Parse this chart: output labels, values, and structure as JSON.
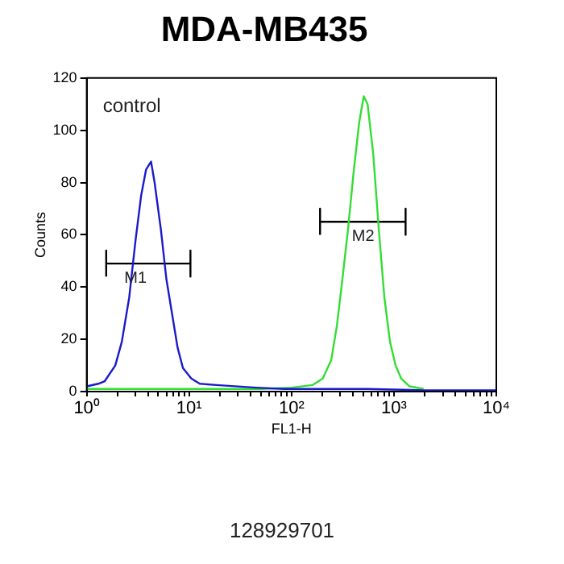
{
  "chart_data": {
    "type": "line",
    "title": "MDA-MB435",
    "xlabel": "FL1-H",
    "ylabel": "Counts",
    "log": "x",
    "grid": false,
    "legend": false,
    "marker": "none",
    "line_style": "solid",
    "xlim": [
      1,
      10000
    ],
    "ylim": [
      0,
      120
    ],
    "xticks": [
      {
        "value": 1,
        "label": "10⁰"
      },
      {
        "value": 2,
        "label": null
      },
      {
        "value": 3,
        "label": null
      },
      {
        "value": 4,
        "label": null
      },
      {
        "value": 5,
        "label": null
      },
      {
        "value": 6,
        "label": null
      },
      {
        "value": 7,
        "label": null
      },
      {
        "value": 8,
        "label": null
      },
      {
        "value": 9,
        "label": null
      },
      {
        "value": 10,
        "label": "10¹"
      },
      {
        "value": 20,
        "label": null
      },
      {
        "value": 30,
        "label": null
      },
      {
        "value": 40,
        "label": null
      },
      {
        "value": 50,
        "label": null
      },
      {
        "value": 60,
        "label": null
      },
      {
        "value": 70,
        "label": null
      },
      {
        "value": 80,
        "label": null
      },
      {
        "value": 90,
        "label": null
      },
      {
        "value": 100,
        "label": "10²"
      },
      {
        "value": 200,
        "label": null
      },
      {
        "value": 300,
        "label": null
      },
      {
        "value": 400,
        "label": null
      },
      {
        "value": 500,
        "label": null
      },
      {
        "value": 600,
        "label": null
      },
      {
        "value": 700,
        "label": null
      },
      {
        "value": 800,
        "label": null
      },
      {
        "value": 900,
        "label": null
      },
      {
        "value": 1000,
        "label": "10³"
      },
      {
        "value": 2000,
        "label": null
      },
      {
        "value": 3000,
        "label": null
      },
      {
        "value": 4000,
        "label": null
      },
      {
        "value": 5000,
        "label": null
      },
      {
        "value": 6000,
        "label": null
      },
      {
        "value": 7000,
        "label": null
      },
      {
        "value": 8000,
        "label": null
      },
      {
        "value": 9000,
        "label": null
      },
      {
        "value": 10000,
        "label": "10⁴"
      }
    ],
    "yticks": [
      0,
      20,
      40,
      60,
      80,
      100,
      120
    ],
    "series": [
      {
        "type": "line",
        "color": "#1a1acc",
        "x": [
          1,
          1.3,
          1.5,
          1.9,
          2.2,
          2.6,
          3,
          3.4,
          3.8,
          4.25,
          4.6,
          5.3,
          6,
          6.8,
          7.7,
          8.7,
          10.5,
          12.7,
          18.5,
          45,
          84,
          157,
          550,
          1950,
          10000
        ],
        "values": [
          2,
          3,
          4,
          10,
          19,
          36,
          58,
          75,
          85,
          88,
          80,
          62,
          43,
          30,
          17,
          9,
          5,
          3,
          2.5,
          1.5,
          1,
          1,
          1,
          0.5,
          0.5
        ]
      },
      {
        "type": "line",
        "color": "#33dd33",
        "x": [
          1,
          10,
          50,
          100,
          160,
          202,
          244,
          277,
          314,
          356,
          404,
          458,
          507,
          553,
          628,
          712,
          807,
          916,
          1038,
          1178,
          1422,
          1950
        ],
        "values": [
          1,
          1,
          1,
          1.5,
          2.5,
          5,
          12,
          25,
          43,
          62,
          84,
          103,
          113,
          110,
          91,
          62,
          36,
          19,
          10,
          5,
          2,
          1
        ]
      },
      {
        "type": "line",
        "color": "#000000",
        "x": [
          1.55,
          1.55,
          1.55,
          10.3,
          10.3,
          10.3
        ],
        "values": [
          44,
          54,
          49,
          49,
          54,
          44
        ]
      },
      {
        "type": "line",
        "color": "#000000",
        "x": [
          190,
          190,
          190,
          1300,
          1300,
          1300
        ],
        "values": [
          60,
          70,
          65,
          65,
          70,
          60
        ]
      }
    ],
    "annotations": [
      "control",
      {
        "text": "M1",
        "x": 3,
        "y": 49
      },
      {
        "text": "M2",
        "x": 500,
        "y": 65
      },
      "128929701"
    ]
  }
}
